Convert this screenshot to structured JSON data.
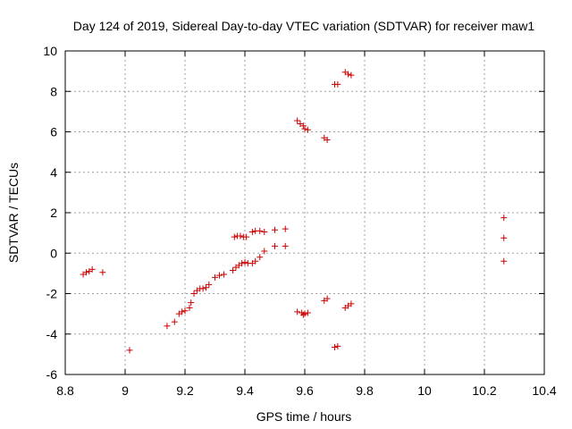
{
  "chart_data": {
    "type": "scatter",
    "title": "Day 124 of 2019, Sidereal Day-to-day VTEC variation (SDTVAR) for receiver maw1",
    "xlabel": "GPS time / hours",
    "ylabel": "SDTVAR / TECUs",
    "xlim": [
      8.8,
      10.4
    ],
    "ylim": [
      -6,
      10
    ],
    "xticks": [
      8.8,
      9,
      9.2,
      9.4,
      9.6,
      9.8,
      10,
      10.2,
      10.4
    ],
    "xtick_labels": [
      "8.8",
      "9",
      "9.2",
      "9.4",
      "9.6",
      "9.8",
      "10",
      "10.2",
      "10.4"
    ],
    "yticks": [
      -6,
      -4,
      -2,
      0,
      2,
      4,
      6,
      8,
      10
    ],
    "ytick_labels": [
      "-6",
      "-4",
      "-2",
      "0",
      "2",
      "4",
      "6",
      "8",
      "10"
    ],
    "grid": true,
    "marker": "+",
    "color": "#cc0000",
    "series": [
      {
        "name": "SDTVAR",
        "points": [
          [
            8.86,
            -1.05
          ],
          [
            8.87,
            -0.95
          ],
          [
            8.88,
            -0.9
          ],
          [
            8.89,
            -0.8
          ],
          [
            8.925,
            -0.95
          ],
          [
            9.015,
            -4.8
          ],
          [
            9.14,
            -3.6
          ],
          [
            9.165,
            -3.4
          ],
          [
            9.18,
            -3.0
          ],
          [
            9.19,
            -2.9
          ],
          [
            9.2,
            -2.85
          ],
          [
            9.215,
            -2.7
          ],
          [
            9.22,
            -2.45
          ],
          [
            9.23,
            -2.0
          ],
          [
            9.24,
            -1.85
          ],
          [
            9.25,
            -1.75
          ],
          [
            9.26,
            -1.75
          ],
          [
            9.27,
            -1.7
          ],
          [
            9.28,
            -1.55
          ],
          [
            9.3,
            -1.2
          ],
          [
            9.315,
            -1.1
          ],
          [
            9.33,
            -1.05
          ],
          [
            9.36,
            -0.85
          ],
          [
            9.37,
            -0.7
          ],
          [
            9.38,
            -0.6
          ],
          [
            9.39,
            -0.5
          ],
          [
            9.4,
            -0.45
          ],
          [
            9.41,
            -0.5
          ],
          [
            9.425,
            -0.5
          ],
          [
            9.435,
            -0.4
          ],
          [
            9.45,
            -0.2
          ],
          [
            9.465,
            0.1
          ],
          [
            9.5,
            0.35
          ],
          [
            9.535,
            0.35
          ],
          [
            9.365,
            0.8
          ],
          [
            9.375,
            0.85
          ],
          [
            9.385,
            0.85
          ],
          [
            9.395,
            0.8
          ],
          [
            9.405,
            0.8
          ],
          [
            9.425,
            1.05
          ],
          [
            9.435,
            1.1
          ],
          [
            9.45,
            1.1
          ],
          [
            9.465,
            1.05
          ],
          [
            9.5,
            1.15
          ],
          [
            9.535,
            1.2
          ],
          [
            9.575,
            6.55
          ],
          [
            9.585,
            6.4
          ],
          [
            9.595,
            6.3
          ],
          [
            9.6,
            6.15
          ],
          [
            9.61,
            6.1
          ],
          [
            9.665,
            5.7
          ],
          [
            9.675,
            5.6
          ],
          [
            9.7,
            8.35
          ],
          [
            9.71,
            8.35
          ],
          [
            9.735,
            8.95
          ],
          [
            9.745,
            8.85
          ],
          [
            9.755,
            8.8
          ],
          [
            9.575,
            -2.9
          ],
          [
            9.59,
            -2.95
          ],
          [
            9.595,
            -3.05
          ],
          [
            9.6,
            -3.0
          ],
          [
            9.61,
            -2.95
          ],
          [
            9.665,
            -2.35
          ],
          [
            9.675,
            -2.25
          ],
          [
            9.7,
            -4.65
          ],
          [
            9.71,
            -4.6
          ],
          [
            9.735,
            -2.7
          ],
          [
            9.745,
            -2.6
          ],
          [
            9.755,
            -2.5
          ],
          [
            10.265,
            1.75
          ],
          [
            10.265,
            0.75
          ],
          [
            10.265,
            -0.4
          ]
        ]
      }
    ]
  }
}
